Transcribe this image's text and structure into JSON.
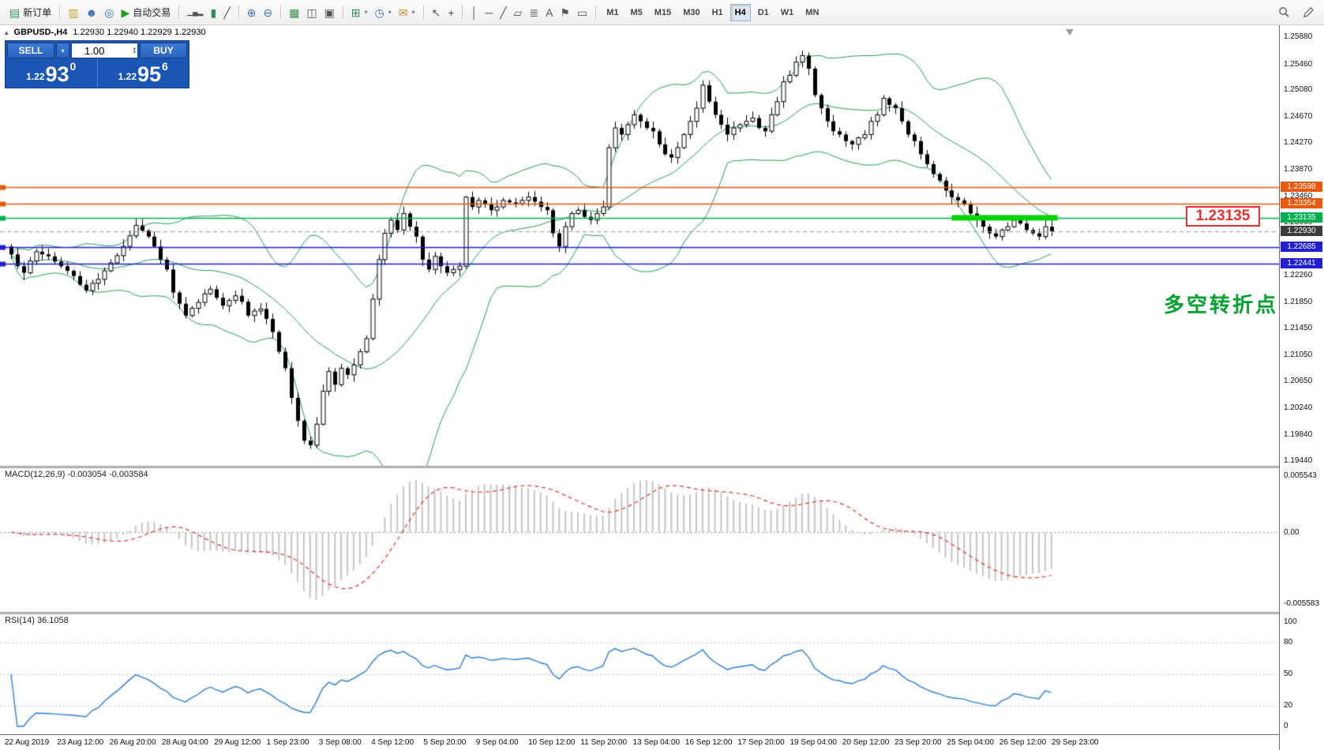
{
  "toolbar": {
    "groups": [
      {
        "items": [
          {
            "name": "new-order-button",
            "glyph": "▤",
            "glyph_color": "#2f8f4f",
            "label": "新订单"
          }
        ]
      },
      {
        "items": [
          {
            "name": "market-depth-icon",
            "glyph": "▥",
            "glyph_color": "#c9a227"
          },
          {
            "name": "profile-icon",
            "glyph": "☻",
            "glyph_color": "#3a6fb0"
          },
          {
            "name": "community-icon",
            "glyph": "◎",
            "glyph_color": "#3a6fb0"
          },
          {
            "name": "autotrading-button",
            "glyph": "▶",
            "glyph_color": "#1fa01f",
            "label": "自动交易"
          }
        ]
      },
      {
        "items": [
          {
            "name": "bar-chart-icon",
            "glyph": "▁▄▂"
          },
          {
            "name": "candlestick-chart-icon",
            "glyph": "▮",
            "glyph_color": "#2f8f4f"
          },
          {
            "name": "line-chart-icon",
            "glyph": "╱"
          }
        ]
      },
      {
        "items": [
          {
            "name": "zoom-in-icon",
            "glyph": "⊕",
            "glyph_color": "#3a6fb0"
          },
          {
            "name": "zoom-out-icon",
            "glyph": "⊖",
            "glyph_color": "#3a6fb0"
          }
        ]
      },
      {
        "items": [
          {
            "name": "tile-windows-icon",
            "glyph": "▦",
            "glyph_color": "#2f8f4f"
          },
          {
            "name": "cascade-windows-icon",
            "glyph": "◫"
          },
          {
            "name": "arrange-windows-icon",
            "glyph": "▣"
          }
        ]
      },
      {
        "items": [
          {
            "name": "new-chart-dropdown",
            "glyph": "⊞",
            "glyph_color": "#2f8f4f",
            "caret": true
          },
          {
            "name": "profiles-dropdown",
            "glyph": "◷",
            "glyph_color": "#3a6fb0",
            "caret": true
          },
          {
            "name": "alerts-dropdown",
            "glyph": "✉",
            "glyph_color": "#b58a2a",
            "caret": true
          }
        ]
      },
      {
        "items": [
          {
            "name": "cursor-icon",
            "glyph": "↖"
          },
          {
            "name": "crosshair-icon",
            "glyph": "+"
          }
        ]
      },
      {
        "items": [
          {
            "name": "vertical-line-icon",
            "glyph": "│"
          },
          {
            "name": "horizontal-line-icon",
            "glyph": "─"
          },
          {
            "name": "trendline-icon",
            "glyph": "╱"
          },
          {
            "name": "channel-icon",
            "glyph": "▱"
          },
          {
            "name": "fibonacci-icon",
            "glyph": "≣"
          },
          {
            "name": "text-icon",
            "glyph": "A"
          },
          {
            "name": "label-icon",
            "glyph": "⚑"
          },
          {
            "name": "shapes-icon",
            "glyph": "▭"
          }
        ]
      }
    ]
  },
  "timeframes": {
    "items": [
      "M1",
      "M5",
      "M15",
      "M30",
      "H1",
      "H4",
      "D1",
      "W1",
      "MN"
    ],
    "active": "H4"
  },
  "chart_header": {
    "toggle_glyph": "▴",
    "symbol": "GBPUSD-,H4",
    "ohlc": "1.22930 1.22940 1.22929 1.22930"
  },
  "trade_panel": {
    "sell_label": "SELL",
    "buy_label": "BUY",
    "volume": "1.00",
    "sell_price": {
      "small": "1.22",
      "big": "93",
      "sup": "0"
    },
    "buy_price": {
      "small": "1.22",
      "big": "95",
      "sup": "6"
    }
  },
  "chart_data": {
    "type": "candlestick",
    "symbol": "GBPUSD",
    "period": "H4",
    "first_open": 1.227,
    "closes": [
      1.2258,
      1.224,
      1.223,
      1.2248,
      1.2262,
      1.2258,
      1.2255,
      1.2247,
      1.224,
      1.2233,
      1.2225,
      1.2212,
      1.2203,
      1.2214,
      1.222,
      1.2233,
      1.2245,
      1.2256,
      1.227,
      1.2286,
      1.2302,
      1.2294,
      1.2285,
      1.227,
      1.225,
      1.2235,
      1.22,
      1.2183,
      1.2165,
      1.2176,
      1.2185,
      1.2198,
      1.2205,
      1.2192,
      1.218,
      1.2188,
      1.2195,
      1.2186,
      1.2165,
      1.2172,
      1.2175,
      1.216,
      1.214,
      1.211,
      1.2085,
      1.204,
      1.2005,
      1.1975,
      1.1968,
      1.2,
      1.205,
      1.208,
      1.206,
      1.2085,
      1.2075,
      1.209,
      1.211,
      1.213,
      1.219,
      1.225,
      1.229,
      1.231,
      1.2295,
      1.232,
      1.23,
      1.2285,
      1.225,
      1.2235,
      1.2255,
      1.224,
      1.223,
      1.2235,
      1.224,
      1.2345,
      1.233,
      1.234,
      1.2335,
      1.2325,
      1.233,
      1.234,
      1.2337,
      1.2335,
      1.234,
      1.2345,
      1.2338,
      1.233,
      1.2325,
      1.229,
      1.227,
      1.23,
      1.232,
      1.2325,
      1.2315,
      1.231,
      1.232,
      1.233,
      1.242,
      1.245,
      1.244,
      1.2455,
      1.247,
      1.246,
      1.245,
      1.2445,
      1.2425,
      1.241,
      1.2405,
      1.242,
      1.244,
      1.246,
      1.248,
      1.2515,
      1.249,
      1.247,
      1.2455,
      1.244,
      1.245,
      1.2455,
      1.246,
      1.2465,
      1.245,
      1.2445,
      1.247,
      1.249,
      1.252,
      1.253,
      1.255,
      1.256,
      1.254,
      1.25,
      1.248,
      1.246,
      1.2445,
      1.244,
      1.243,
      1.2425,
      1.2435,
      1.244,
      1.246,
      1.247,
      1.2495,
      1.2485,
      1.248,
      1.246,
      1.244,
      1.243,
      1.241,
      1.2395,
      1.238,
      1.237,
      1.2355,
      1.2345,
      1.234,
      1.2335,
      1.232,
      1.231,
      1.23,
      1.229,
      1.2285,
      1.2295,
      1.23,
      1.231,
      1.2305,
      1.2295,
      1.229,
      1.2285,
      1.23,
      1.2293
    ],
    "bollinger": {
      "period": 20,
      "deviation": 2,
      "color": "#1e9e50"
    },
    "y_axis_labels": [
      "1.25880",
      "1.25460",
      "1.25080",
      "1.24670",
      "1.24270",
      "1.23870",
      "1.23460",
      "1.23060",
      "1.22660",
      "1.22260",
      "1.21850",
      "1.21450",
      "1.21050",
      "1.20650",
      "1.20240",
      "1.19840",
      "1.19440"
    ],
    "x_axis_labels": [
      "22 Aug 2019",
      "23 Aug 12:00",
      "26 Aug 20:00",
      "28 Aug 04:00",
      "29 Aug 12:00",
      "1 Sep 23:00",
      "3 Sep 08:00",
      "4 Sep 12:00",
      "5 Sep 20:00",
      "9 Sep 04:00",
      "10 Sep 12:00",
      "11 Sep 20:00",
      "13 Sep 04:00",
      "16 Sep 12:00",
      "17 Sep 20:00",
      "19 Sep 04:00",
      "20 Sep 12:00",
      "23 Sep 20:00",
      "25 Sep 04:00",
      "26 Sep 12:00",
      "29 Sep 23:00"
    ],
    "hlines": [
      {
        "price": 1.23598,
        "label": "1.23598",
        "color": "#e8590c"
      },
      {
        "price": 1.23354,
        "label": "1.23354",
        "color": "#e8590c"
      },
      {
        "price": 1.23135,
        "label": "1.23135",
        "color": "#00b050"
      },
      {
        "price": 1.22685,
        "label": "1.22685",
        "color": "#1f1fd0"
      },
      {
        "price": 1.22441,
        "label": "1.22441",
        "color": "#1f1fd0"
      }
    ],
    "current_price": {
      "value": 1.2293,
      "label": "1.22930",
      "badge_color": "#3c3c3c"
    },
    "annotations": {
      "price_box_label": "1.23135",
      "turning_point_text": "多空转折点",
      "highlight_bar": {
        "price": 1.23135,
        "from_candle": 151,
        "to_candle": 168,
        "color": "#00d300"
      }
    },
    "macd": {
      "header_text": "MACD(12,26,9) -0.003054 -0.003584",
      "axis_top": "0.005543",
      "axis_zero": "0.00",
      "axis_bottom": "-0.005583",
      "histogram_color": "#c4c4c4",
      "signal_color": "#e03030"
    },
    "rsi": {
      "header_text": "RSI(14) 36.1058",
      "line_color": "#2b7cd3",
      "axis_top": "100",
      "axis_bottom": "0",
      "levels": [
        {
          "value": 80,
          "label": "80"
        },
        {
          "value": 50,
          "label": "50"
        },
        {
          "value": 20,
          "label": "20"
        }
      ]
    }
  }
}
